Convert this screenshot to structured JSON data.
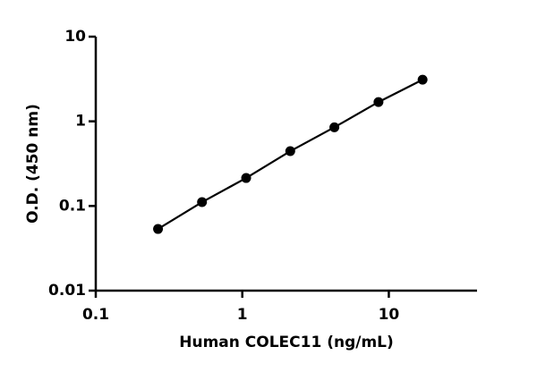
{
  "chart_data": {
    "type": "scatter",
    "x_label": "Human COLEC11 (ng/mL)",
    "y_label": "O.D. (450 nm)",
    "x": [
      0.266,
      0.531,
      1.0625,
      2.125,
      4.25,
      8.5,
      17
    ],
    "series": [
      {
        "color": "#000000",
        "values": [
          0.0535,
          0.111,
          0.214,
          0.444,
          0.85,
          1.69,
          3.1
        ]
      }
    ],
    "xscale": "log",
    "yscale": "log",
    "xlim": [
      0.1,
      40
    ],
    "ylim": [
      0.01,
      10
    ],
    "xticks": [
      0.1,
      1,
      10
    ],
    "yticks": [
      0.01,
      0.1,
      1,
      10
    ],
    "line": true
  }
}
